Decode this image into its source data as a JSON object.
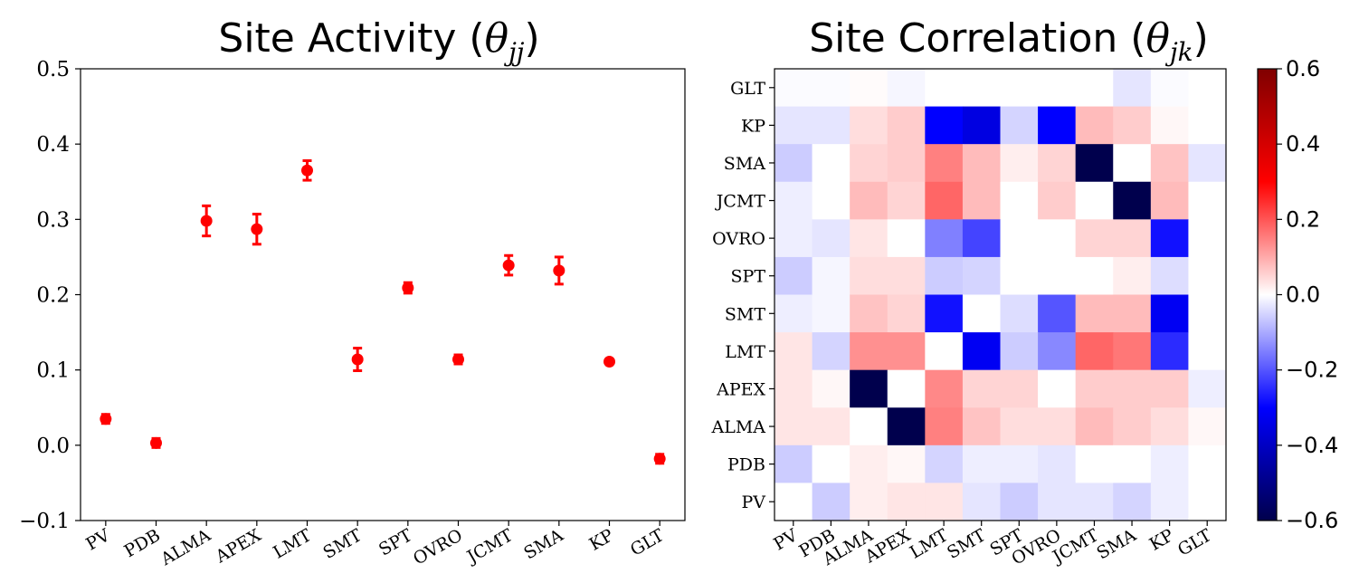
{
  "chart_data": [
    {
      "type": "scatter",
      "title_prefix": "Site Activity (",
      "title_math": "θ",
      "title_sub": "jj",
      "title_suffix": ")",
      "categories": [
        "PV",
        "PDB",
        "ALMA",
        "APEX",
        "LMT",
        "SMT",
        "SPT",
        "OVRO",
        "JCMT",
        "SMA",
        "KP",
        "GLT"
      ],
      "series": [
        {
          "values": [
            0.035,
            0.003,
            0.298,
            0.287,
            0.365,
            0.114,
            0.209,
            0.114,
            0.239,
            0.232,
            0.111,
            -0.018
          ],
          "errors": [
            0.006,
            0.006,
            0.02,
            0.02,
            0.013,
            0.015,
            0.007,
            0.006,
            0.013,
            0.018,
            0.003,
            0.006
          ],
          "color": "#ff0000"
        }
      ],
      "ylim": [
        -0.1,
        0.5
      ],
      "yticks": [
        "−0.1",
        "0.0",
        "0.1",
        "0.2",
        "0.3",
        "0.4",
        "0.5"
      ],
      "grid": false
    },
    {
      "type": "heatmap",
      "title_prefix": "Site Correlation (",
      "title_math": "θ",
      "title_sub": "jk",
      "title_suffix": ")",
      "x_categories": [
        "PV",
        "PDB",
        "ALMA",
        "APEX",
        "LMT",
        "SMT",
        "SPT",
        "OVRO",
        "JCMT",
        "SMA",
        "KP",
        "GLT"
      ],
      "y_categories_top_to_bottom": [
        "GLT",
        "KP",
        "SMA",
        "JCMT",
        "OVRO",
        "SPT",
        "SMT",
        "LMT",
        "APEX",
        "ALMA",
        "PDB",
        "PV"
      ],
      "rows_top_to_bottom": [
        [
          -0.005,
          -0.005,
          0.005,
          -0.01,
          0.0,
          0.0,
          0.0,
          0.0,
          0.0,
          -0.03,
          -0.005,
          0.0
        ],
        [
          -0.03,
          -0.03,
          0.04,
          0.06,
          -0.3,
          -0.35,
          -0.05,
          -0.3,
          0.08,
          0.06,
          0.01,
          0.0
        ],
        [
          -0.06,
          0.0,
          0.05,
          0.06,
          0.15,
          0.08,
          0.02,
          0.05,
          -0.62,
          0.0,
          0.07,
          -0.03
        ],
        [
          -0.02,
          0.0,
          0.08,
          0.05,
          0.18,
          0.08,
          0.0,
          0.06,
          0.0,
          -0.62,
          0.08,
          0.0
        ],
        [
          -0.02,
          -0.03,
          0.03,
          0.0,
          -0.15,
          -0.22,
          0.0,
          0.0,
          0.05,
          0.05,
          -0.28,
          0.0
        ],
        [
          -0.06,
          -0.01,
          0.04,
          0.04,
          -0.06,
          -0.05,
          0.0,
          0.0,
          0.0,
          0.02,
          -0.04,
          0.0
        ],
        [
          -0.02,
          -0.01,
          0.07,
          0.05,
          -0.28,
          0.0,
          -0.04,
          -0.2,
          0.08,
          0.08,
          -0.32,
          0.0
        ],
        [
          0.03,
          -0.05,
          0.13,
          0.13,
          0.0,
          -0.32,
          -0.06,
          -0.14,
          0.18,
          0.16,
          -0.25,
          0.0
        ],
        [
          0.03,
          0.01,
          -0.6,
          0.0,
          0.14,
          0.05,
          0.05,
          0.0,
          0.06,
          0.06,
          0.06,
          -0.02
        ],
        [
          0.03,
          0.03,
          0.0,
          -0.6,
          0.15,
          0.07,
          0.04,
          0.04,
          0.08,
          0.06,
          0.04,
          0.01
        ],
        [
          -0.06,
          0.0,
          0.02,
          0.01,
          -0.05,
          -0.02,
          -0.02,
          -0.03,
          0.0,
          0.0,
          -0.02,
          0.0
        ],
        [
          0.0,
          -0.06,
          0.02,
          0.03,
          0.03,
          -0.03,
          -0.06,
          -0.03,
          -0.03,
          -0.05,
          -0.02,
          0.0
        ]
      ],
      "colormap": "seismic",
      "vmin": -0.6,
      "vmax": 0.6,
      "colorbar_ticks": [
        "0.6",
        "0.4",
        "0.2",
        "0.0",
        "−0.2",
        "−0.4",
        "−0.6"
      ]
    }
  ]
}
